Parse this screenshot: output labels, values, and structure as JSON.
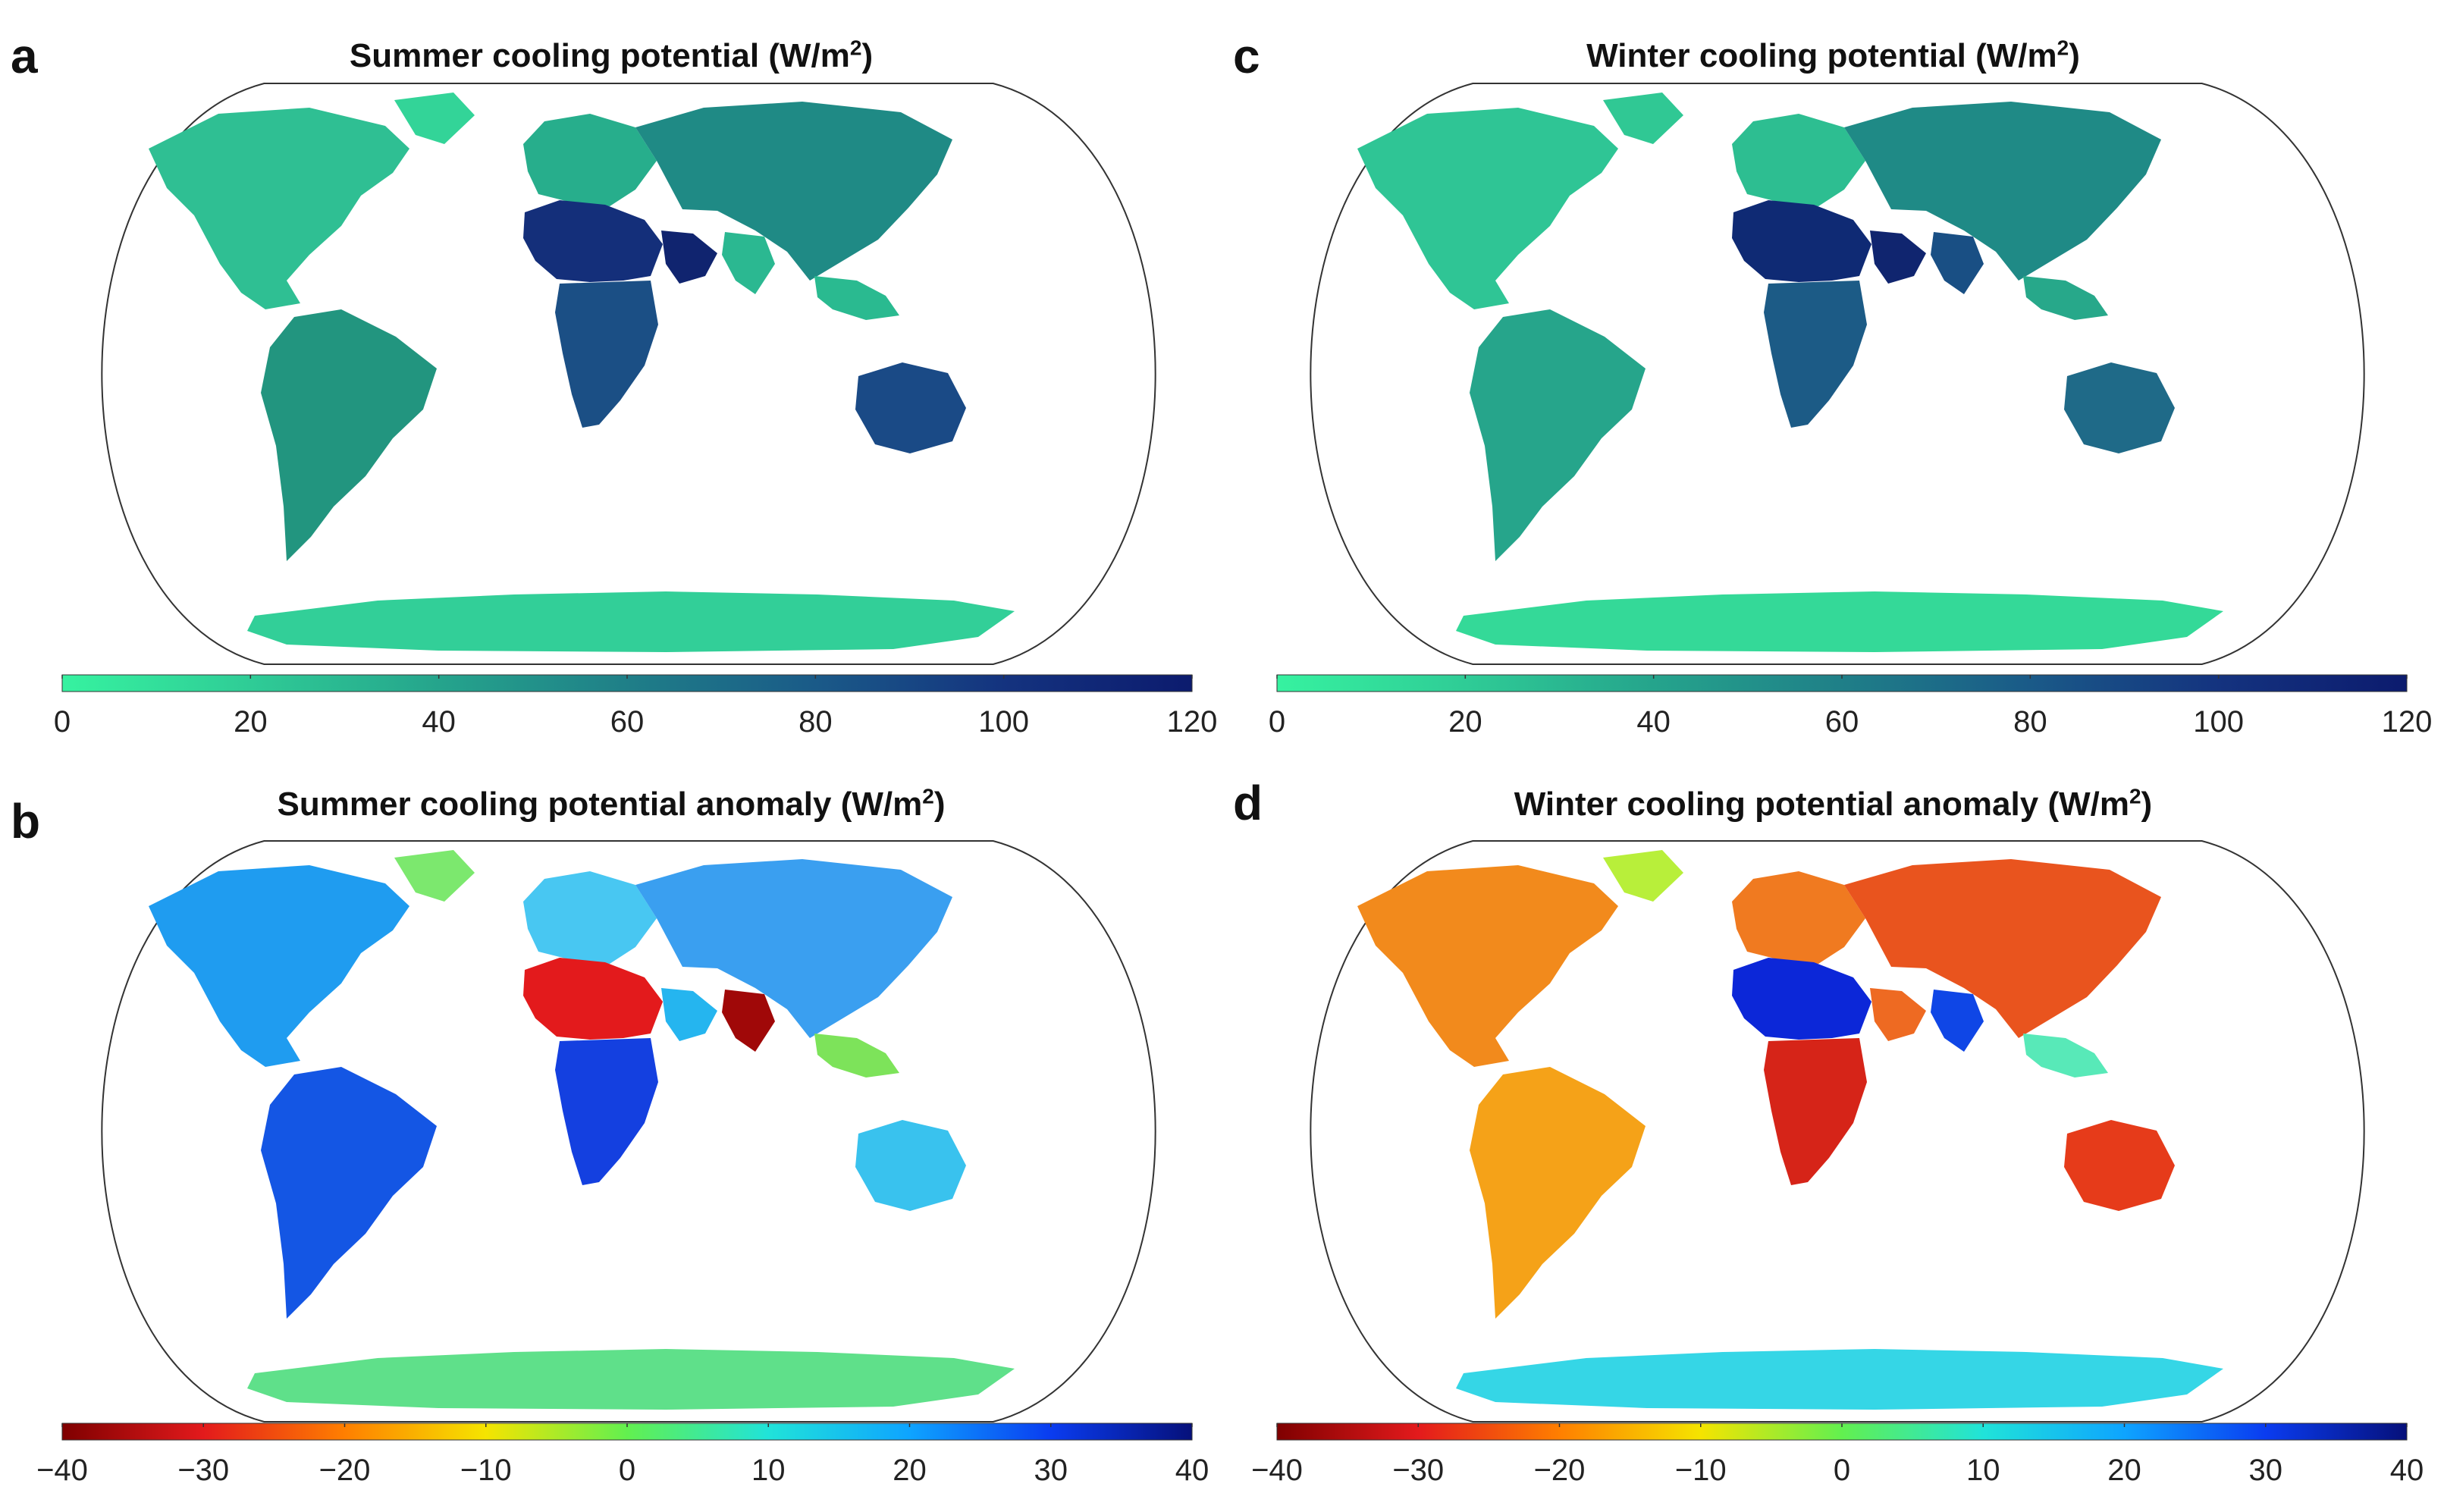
{
  "panels": {
    "a": {
      "label": "a",
      "title": "Summer cooling potential (W/m",
      "unit_sup": "2",
      "title_close": ")",
      "colorbar": {
        "colors": [
          "#36f2a0",
          "#2fcc96",
          "#25a48c",
          "#1f7f88",
          "#1a5a88",
          "#14337f",
          "#0c1b6e"
        ],
        "ticks": [
          "0",
          "20",
          "40",
          "60",
          "80",
          "100",
          "120"
        ],
        "range": [
          0,
          120
        ]
      }
    },
    "b": {
      "label": "b",
      "title": "Summer cooling potential anomaly (W/m",
      "unit_sup": "2",
      "title_close": ")",
      "colorbar": {
        "colors": [
          "#7f0000",
          "#e31a1c",
          "#ff7f00",
          "#f5e400",
          "#62f04f",
          "#20e3d9",
          "#0ea4ff",
          "#0a3cf0",
          "#06107a"
        ],
        "ticks": [
          "-40",
          "-30",
          "-20",
          "-10",
          "0",
          "10",
          "20",
          "30",
          "40"
        ],
        "range": [
          -40,
          40
        ]
      }
    },
    "c": {
      "label": "c",
      "title": "Winter cooling potential (W/m",
      "unit_sup": "2",
      "title_close": ")",
      "colorbar": {
        "colors": [
          "#36f2a0",
          "#2fcc96",
          "#25a48c",
          "#1f7f88",
          "#1a5a88",
          "#14337f",
          "#0c1b6e"
        ],
        "ticks": [
          "0",
          "20",
          "40",
          "60",
          "80",
          "100",
          "120"
        ],
        "range": [
          0,
          120
        ]
      }
    },
    "d": {
      "label": "d",
      "title": "Winter cooling potential anomaly (W/m",
      "unit_sup": "2",
      "title_close": ")",
      "colorbar": {
        "colors": [
          "#7f0000",
          "#e31a1c",
          "#ff7f00",
          "#f5e400",
          "#62f04f",
          "#20e3d9",
          "#0ea4ff",
          "#0a3cf0",
          "#06107a"
        ],
        "ticks": [
          "-40",
          "-30",
          "-20",
          "-10",
          "0",
          "10",
          "20",
          "30",
          "40"
        ],
        "range": [
          -40,
          40
        ]
      }
    }
  },
  "regions": {
    "a": {
      "north_america": "#2fbf93",
      "south_america": "#22957f",
      "europe": "#27ae8c",
      "asia": "#1f8a85",
      "africa_north": "#142f7a",
      "africa_south": "#1b4f85",
      "australia": "#1a4a86",
      "antarctica": "#32cf98",
      "greenland": "#33d498",
      "arabia": "#10246f",
      "india": "#2bb891",
      "sea_islands": "#2aba90"
    },
    "b": {
      "north_america": "#1f9cf0",
      "south_america": "#1456e4",
      "europe": "#48c7f2",
      "asia": "#3a9ff0",
      "africa_north": "#e31a1c",
      "africa_south": "#1440e0",
      "australia": "#39c2ee",
      "antarctica": "#5fe08a",
      "greenland": "#7ce86e",
      "arabia": "#25b5ef",
      "india": "#a00808",
      "sea_islands": "#7de35a"
    },
    "c": {
      "north_america": "#2fc595",
      "south_america": "#26a58b",
      "europe": "#2dbe91",
      "asia": "#1f8a86",
      "africa_north": "#0f2a74",
      "africa_south": "#1c5b86",
      "australia": "#1f6a88",
      "antarctica": "#34d998",
      "greenland": "#30c894",
      "arabia": "#10256f",
      "india": "#194f84",
      "sea_islands": "#27a88a"
    },
    "d": {
      "north_america": "#f28a1c",
      "south_america": "#f5a218",
      "europe": "#f07a20",
      "asia": "#e9541e",
      "africa_north": "#0c27d8",
      "africa_south": "#d62418",
      "australia": "#e63b1a",
      "antarctica": "#35d6e6",
      "greenland": "#b8ef3a",
      "arabia": "#ee6a22",
      "india": "#0f46e6",
      "sea_islands": "#58e9b8"
    }
  }
}
